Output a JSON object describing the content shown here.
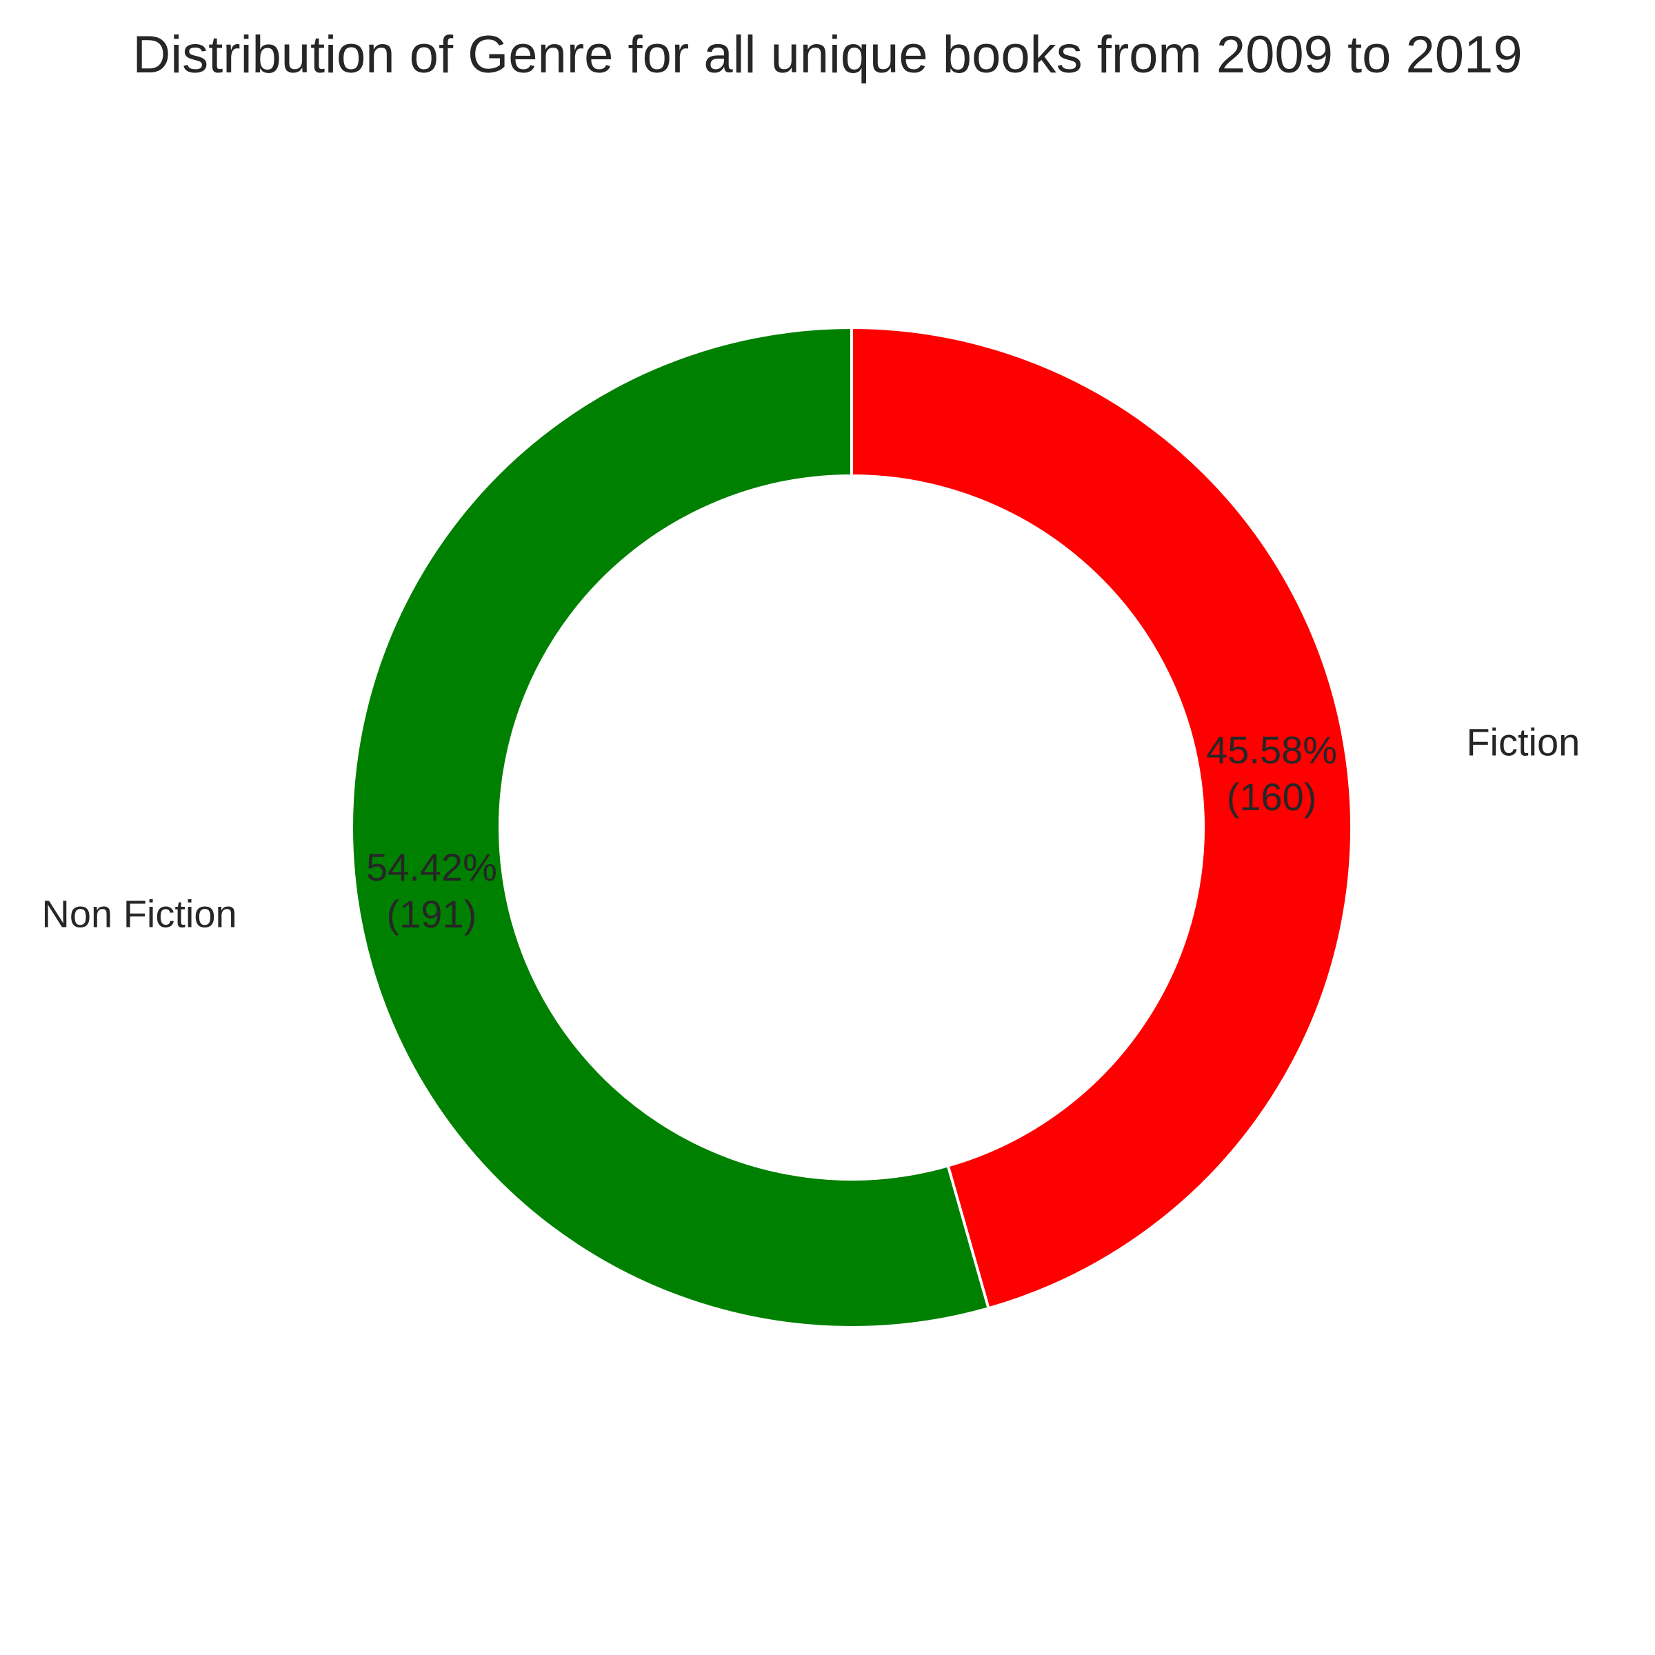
{
  "chart_data": {
    "type": "pie",
    "style": "donut",
    "title": "Distribution of Genre for all unique books from 2009 to 2019",
    "slices": [
      {
        "label": "Fiction",
        "value": 160,
        "percent_label": "45.58%",
        "count_label": "(160)",
        "color": "#ff0000"
      },
      {
        "label": "Non Fiction",
        "value": 191,
        "percent_label": "54.42%",
        "count_label": "(191)",
        "color": "#008000"
      }
    ],
    "start_angle": "top",
    "direction": "clockwise",
    "edge_color": "#ffffff"
  }
}
